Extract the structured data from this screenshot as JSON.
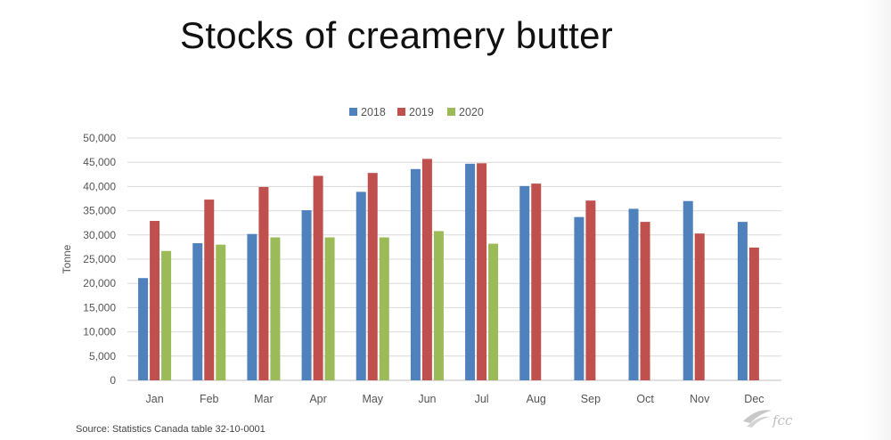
{
  "slide": {
    "title": "Stocks of creamery butter",
    "source": "Source: Statistics Canada table 32-10-0001",
    "logo_text": "fcc"
  },
  "chart_data": {
    "type": "bar",
    "title": "",
    "xlabel": "",
    "ylabel": "Tonne",
    "ylim": [
      0,
      50000
    ],
    "ytick_step": 5000,
    "yticks": [
      "0",
      "5,000",
      "10,000",
      "15,000",
      "20,000",
      "25,000",
      "30,000",
      "35,000",
      "40,000",
      "45,000",
      "50,000"
    ],
    "grid": true,
    "legend_position": "top",
    "categories": [
      "Jan",
      "Feb",
      "Mar",
      "Apr",
      "May",
      "Jun",
      "Jul",
      "Aug",
      "Sep",
      "Oct",
      "Nov",
      "Dec"
    ],
    "series": [
      {
        "name": "2018",
        "color": "#4f81bd",
        "values": [
          21100,
          28300,
          30200,
          35100,
          38900,
          43600,
          44700,
          40100,
          33700,
          35400,
          37000,
          32700
        ]
      },
      {
        "name": "2019",
        "color": "#c0504d",
        "values": [
          32900,
          37300,
          39900,
          42200,
          42800,
          45700,
          44800,
          40600,
          37100,
          32700,
          30300,
          27400
        ]
      },
      {
        "name": "2020",
        "color": "#9bbb59",
        "values": [
          26700,
          28000,
          29500,
          29500,
          29500,
          30800,
          28200,
          null,
          null,
          null,
          null,
          null
        ]
      }
    ]
  }
}
